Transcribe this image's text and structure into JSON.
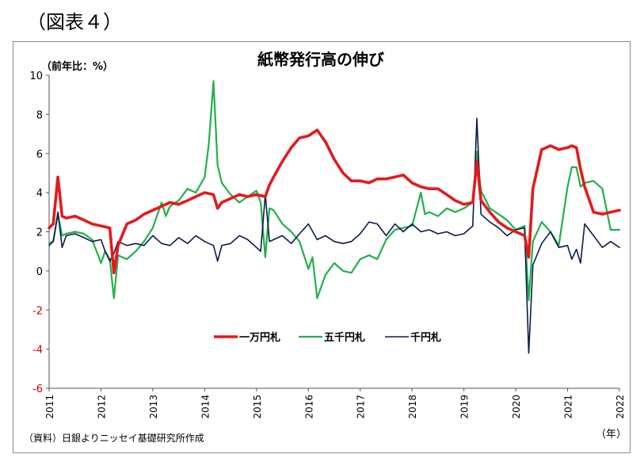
{
  "figure_label": "（図表４）",
  "source_note": "（資料）日銀よりニッセイ基礎研究所作成",
  "chart_data": {
    "type": "line",
    "title": "紙幣発行高の伸び",
    "ylabel": "（前年比：%）",
    "xlabel": "（年）",
    "ylim": [
      -6,
      10
    ],
    "yticks": [
      -6,
      -4,
      -2,
      0,
      2,
      4,
      6,
      8,
      10
    ],
    "xlim": [
      2011,
      2022
    ],
    "xticks": [
      "2011",
      "2012",
      "2013",
      "2014",
      "2015",
      "2016",
      "2017",
      "2018",
      "2019",
      "2020",
      "2021",
      "2022"
    ],
    "grid": false,
    "legend": "center",
    "series": [
      {
        "name": "一万円札",
        "color": "#e41a1c",
        "x": [
          2011.0,
          2011.08,
          2011.17,
          2011.25,
          2011.33,
          2011.5,
          2011.67,
          2011.83,
          2012.0,
          2012.17,
          2012.25,
          2012.33,
          2012.5,
          2012.67,
          2012.83,
          2013.0,
          2013.17,
          2013.33,
          2013.5,
          2013.67,
          2013.83,
          2014.0,
          2014.17,
          2014.25,
          2014.33,
          2014.5,
          2014.67,
          2014.83,
          2015.0,
          2015.17,
          2015.25,
          2015.33,
          2015.5,
          2015.67,
          2015.83,
          2016.0,
          2016.17,
          2016.25,
          2016.33,
          2016.5,
          2016.67,
          2016.83,
          2017.0,
          2017.17,
          2017.33,
          2017.5,
          2017.67,
          2017.83,
          2018.0,
          2018.17,
          2018.33,
          2018.5,
          2018.67,
          2018.83,
          2019.0,
          2019.17,
          2019.25,
          2019.33,
          2019.5,
          2019.67,
          2019.83,
          2020.0,
          2020.17,
          2020.25,
          2020.33,
          2020.5,
          2020.67,
          2020.83,
          2021.0,
          2021.08,
          2021.17,
          2021.25,
          2021.33,
          2021.5,
          2021.67,
          2021.83,
          2022.0
        ],
        "values": [
          2.2,
          2.4,
          4.8,
          2.8,
          2.7,
          2.8,
          2.6,
          2.4,
          2.3,
          2.2,
          -0.1,
          1.3,
          2.4,
          2.6,
          2.9,
          3.1,
          3.3,
          3.5,
          3.4,
          3.6,
          3.8,
          4.0,
          3.9,
          3.2,
          3.5,
          3.7,
          3.9,
          3.8,
          3.9,
          3.8,
          4.4,
          4.8,
          5.6,
          6.3,
          6.8,
          6.9,
          7.2,
          6.9,
          6.6,
          5.7,
          5.0,
          4.6,
          4.6,
          4.5,
          4.7,
          4.7,
          4.8,
          4.9,
          4.5,
          4.3,
          4.2,
          4.2,
          3.9,
          3.6,
          3.4,
          3.5,
          5.6,
          3.6,
          3.0,
          2.5,
          2.2,
          2.0,
          1.8,
          0.7,
          4.2,
          6.2,
          6.4,
          6.2,
          6.3,
          6.4,
          6.3,
          5.2,
          4.3,
          3.0,
          2.9,
          3.0,
          3.1
        ]
      },
      {
        "name": "五千円札",
        "color": "#22b04b",
        "x": [
          2011.0,
          2011.08,
          2011.17,
          2011.25,
          2011.33,
          2011.5,
          2011.67,
          2011.83,
          2012.0,
          2012.08,
          2012.17,
          2012.25,
          2012.33,
          2012.5,
          2012.67,
          2012.83,
          2013.0,
          2013.17,
          2013.25,
          2013.33,
          2013.5,
          2013.67,
          2013.83,
          2014.0,
          2014.08,
          2014.17,
          2014.25,
          2014.33,
          2014.5,
          2014.67,
          2014.83,
          2015.0,
          2015.08,
          2015.17,
          2015.25,
          2015.33,
          2015.5,
          2015.67,
          2015.83,
          2016.0,
          2016.08,
          2016.17,
          2016.33,
          2016.5,
          2016.67,
          2016.83,
          2017.0,
          2017.17,
          2017.33,
          2017.5,
          2017.67,
          2017.83,
          2018.0,
          2018.17,
          2018.25,
          2018.33,
          2018.5,
          2018.67,
          2018.83,
          2019.0,
          2019.17,
          2019.25,
          2019.33,
          2019.5,
          2019.67,
          2019.83,
          2020.0,
          2020.17,
          2020.25,
          2020.33,
          2020.5,
          2020.67,
          2020.83,
          2021.0,
          2021.08,
          2021.17,
          2021.25,
          2021.33,
          2021.5,
          2021.67,
          2021.83,
          2022.0
        ],
        "values": [
          1.4,
          1.5,
          2.9,
          1.8,
          1.9,
          2.0,
          1.9,
          1.6,
          0.4,
          1.0,
          0.6,
          -1.4,
          0.8,
          0.6,
          1.0,
          1.5,
          2.2,
          3.5,
          2.8,
          3.3,
          3.6,
          4.2,
          4.0,
          4.8,
          6.5,
          9.7,
          5.4,
          4.5,
          3.9,
          3.5,
          3.8,
          4.1,
          3.5,
          0.7,
          3.2,
          3.1,
          2.4,
          2.0,
          1.5,
          0.1,
          0.7,
          -1.4,
          -0.2,
          0.4,
          0.0,
          -0.1,
          0.6,
          0.8,
          0.6,
          1.6,
          2.1,
          2.2,
          2.3,
          4.0,
          2.9,
          3.0,
          2.8,
          3.2,
          3.0,
          3.2,
          3.5,
          6.1,
          4.1,
          3.2,
          2.9,
          2.6,
          2.1,
          2.3,
          -1.5,
          1.5,
          2.5,
          2.0,
          1.3,
          4.3,
          5.3,
          5.3,
          4.3,
          4.5,
          4.6,
          4.2,
          2.1,
          2.1
        ]
      },
      {
        "name": "千円札",
        "color": "#0d1b4c",
        "x": [
          2011.0,
          2011.08,
          2011.17,
          2011.25,
          2011.33,
          2011.5,
          2011.67,
          2011.83,
          2012.0,
          2012.08,
          2012.17,
          2012.25,
          2012.33,
          2012.5,
          2012.67,
          2012.83,
          2013.0,
          2013.17,
          2013.33,
          2013.5,
          2013.67,
          2013.83,
          2014.0,
          2014.17,
          2014.25,
          2014.33,
          2014.5,
          2014.67,
          2014.83,
          2015.0,
          2015.08,
          2015.17,
          2015.25,
          2015.33,
          2015.5,
          2015.67,
          2015.83,
          2016.0,
          2016.17,
          2016.33,
          2016.5,
          2016.67,
          2016.83,
          2017.0,
          2017.17,
          2017.33,
          2017.5,
          2017.67,
          2017.83,
          2018.0,
          2018.17,
          2018.33,
          2018.5,
          2018.67,
          2018.83,
          2019.0,
          2019.17,
          2019.25,
          2019.33,
          2019.5,
          2019.67,
          2019.83,
          2020.0,
          2020.17,
          2020.25,
          2020.33,
          2020.5,
          2020.67,
          2020.83,
          2021.0,
          2021.08,
          2021.17,
          2021.25,
          2021.33,
          2021.5,
          2021.67,
          2021.83,
          2022.0
        ],
        "values": [
          1.3,
          1.5,
          3.0,
          1.2,
          1.8,
          1.9,
          1.7,
          1.5,
          1.6,
          1.0,
          0.5,
          0.9,
          1.5,
          1.3,
          1.4,
          1.3,
          1.8,
          1.4,
          1.3,
          1.7,
          1.4,
          1.8,
          1.5,
          1.3,
          0.5,
          1.3,
          1.4,
          1.8,
          1.6,
          1.2,
          1.0,
          3.9,
          1.5,
          1.6,
          1.8,
          1.4,
          1.9,
          2.4,
          1.6,
          1.8,
          1.5,
          1.4,
          1.5,
          1.9,
          2.5,
          2.4,
          1.8,
          2.4,
          2.0,
          2.4,
          2.0,
          2.1,
          1.9,
          2.0,
          1.8,
          1.9,
          2.3,
          7.8,
          2.9,
          2.5,
          2.2,
          1.8,
          2.1,
          2.2,
          -4.2,
          0.3,
          1.4,
          2.0,
          1.2,
          1.3,
          0.6,
          1.1,
          0.4,
          2.4,
          1.8,
          1.2,
          1.5,
          1.2
        ]
      }
    ]
  }
}
